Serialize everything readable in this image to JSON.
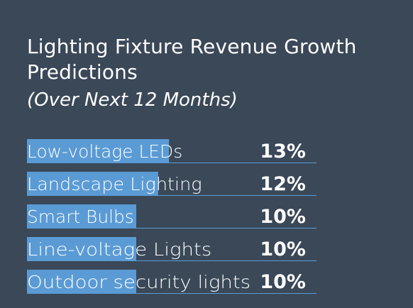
{
  "chart_data": {
    "type": "bar",
    "title": "Lighting Fixture Revenue Growth Predictions",
    "subtitle": "(Over Next 12 Months)",
    "categories": [
      "Low-voltage LEDs",
      "Landscape Lighting",
      "Smart Bulbs",
      "Line-voltage Lights",
      "Outdoor security lights"
    ],
    "values": [
      13,
      12,
      10,
      10,
      10
    ],
    "value_labels": [
      "13%",
      "12%",
      "10%",
      "10%",
      "10%"
    ],
    "xlim": [
      0,
      40
    ],
    "orientation": "horizontal",
    "bar_color": "#5b9bd5",
    "background_color": "#3a4858",
    "text_color": "#ffffff"
  }
}
